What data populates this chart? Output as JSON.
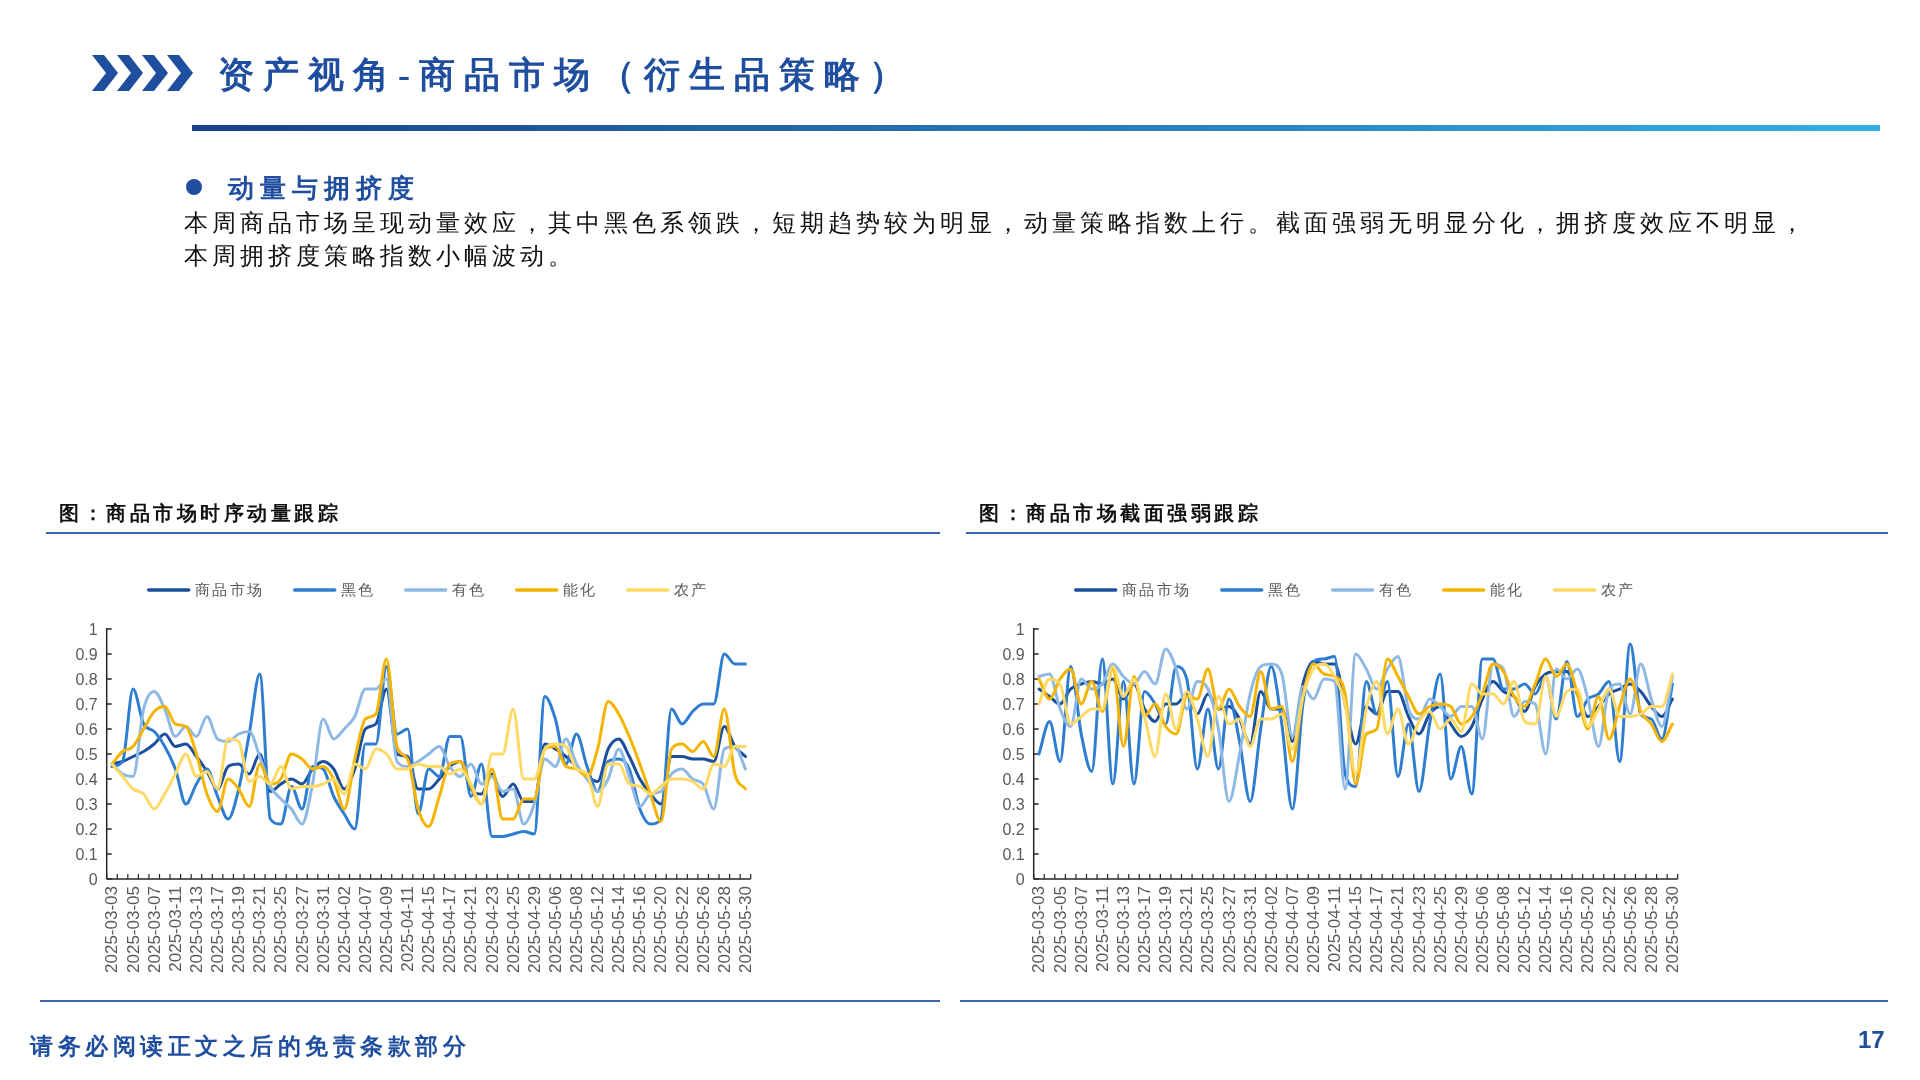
{
  "chart_data": [
    {
      "type": "other",
      "title": "资产视角-商品市场（衍生品策略）",
      "subtitle": "动量与拥挤度",
      "annotations": [
        "本周商品市场呈现动量效应，其中黑色系领跌，短期趋势较为明显，动量策略指数上行。截面强弱无明显分化，拥挤度效应不明显，本周拥挤度策略指数小幅波动。",
        "请务必阅读正文之后的免责条款部分",
        "17"
      ]
    },
    {
      "type": "line",
      "title": "图：商品市场时序动量跟踪",
      "legend": "top",
      "ylim": [
        0,
        1
      ],
      "yticks": [
        0,
        0.1,
        0.2,
        0.3,
        0.4,
        0.5,
        0.6,
        0.7,
        0.8,
        0.9,
        1
      ],
      "categories": [
        "2025-03-03",
        null,
        "2025-03-05",
        null,
        "2025-03-07",
        null,
        "2025-03-11",
        null,
        "2025-03-13",
        null,
        "2025-03-17",
        null,
        "2025-03-19",
        null,
        "2025-03-21",
        null,
        "2025-03-25",
        null,
        "2025-03-27",
        null,
        "2025-03-31",
        null,
        "2025-04-02",
        null,
        "2025-04-07",
        null,
        "2025-04-09",
        null,
        "2025-04-11",
        null,
        "2025-04-15",
        null,
        "2025-04-17",
        null,
        "2025-04-21",
        null,
        "2025-04-23",
        null,
        "2025-04-25",
        null,
        "2025-04-29",
        null,
        "2025-05-06",
        null,
        "2025-05-08",
        null,
        "2025-05-12",
        null,
        "2025-05-14",
        null,
        "2025-05-16",
        null,
        "2025-05-20",
        null,
        "2025-05-22",
        null,
        "2025-05-26",
        null,
        "2025-05-28",
        null,
        "2025-05-30"
      ],
      "series": [
        {
          "name": "商品市场",
          "color": "#1b4f9c",
          "values": [
            0.46,
            0.47,
            0.49,
            0.51,
            0.54,
            0.58,
            0.53,
            0.54,
            0.49,
            0.43,
            0.36,
            0.45,
            0.46,
            0.42,
            0.5,
            0.35,
            0.38,
            0.4,
            0.38,
            0.44,
            0.47,
            0.44,
            0.36,
            0.44,
            0.6,
            0.62,
            0.76,
            0.5,
            0.49,
            0.36,
            0.36,
            0.4,
            0.45,
            0.47,
            0.36,
            0.34,
            0.42,
            0.33,
            0.38,
            0.31,
            0.31,
            0.54,
            0.52,
            0.49,
            0.45,
            0.41,
            0.39,
            0.52,
            0.56,
            0.49,
            0.4,
            0.34,
            0.3,
            0.49,
            0.49,
            0.48,
            0.48,
            0.47,
            0.61,
            0.53,
            0.49
          ]
        },
        {
          "name": "黑色",
          "color": "#2e7dd1",
          "values": [
            0.45,
            0.47,
            0.76,
            0.62,
            0.59,
            0.53,
            0.44,
            0.3,
            0.38,
            0.44,
            0.33,
            0.24,
            0.36,
            0.58,
            0.82,
            0.24,
            0.22,
            0.37,
            0.28,
            0.45,
            0.44,
            0.33,
            0.26,
            0.2,
            0.54,
            0.54,
            0.85,
            0.58,
            0.6,
            0.26,
            0.44,
            0.41,
            0.57,
            0.57,
            0.33,
            0.46,
            0.17,
            0.17,
            0.18,
            0.19,
            0.18,
            0.73,
            0.64,
            0.46,
            0.58,
            0.45,
            0.35,
            0.47,
            0.48,
            0.44,
            0.28,
            0.22,
            0.24,
            0.68,
            0.62,
            0.67,
            0.7,
            0.7,
            0.9,
            0.86,
            0.86
          ]
        },
        {
          "name": "有色",
          "color": "#8eb9e5",
          "values": [
            0.46,
            0.42,
            0.41,
            0.68,
            0.75,
            0.68,
            0.57,
            0.61,
            0.57,
            0.65,
            0.56,
            0.55,
            0.58,
            0.59,
            0.49,
            0.37,
            0.32,
            0.28,
            0.22,
            0.38,
            0.64,
            0.56,
            0.6,
            0.65,
            0.76,
            0.76,
            0.8,
            0.47,
            0.45,
            0.47,
            0.5,
            0.53,
            0.45,
            0.41,
            0.46,
            0.38,
            0.41,
            0.35,
            0.36,
            0.22,
            0.3,
            0.48,
            0.45,
            0.56,
            0.46,
            0.4,
            0.35,
            0.4,
            0.52,
            0.41,
            0.29,
            0.34,
            0.35,
            0.42,
            0.44,
            0.4,
            0.38,
            0.28,
            0.52,
            0.53,
            0.44
          ]
        },
        {
          "name": "能化",
          "color": "#f5b400",
          "values": [
            0.46,
            0.51,
            0.53,
            0.6,
            0.67,
            0.69,
            0.62,
            0.61,
            0.5,
            0.34,
            0.27,
            0.4,
            0.36,
            0.29,
            0.46,
            0.38,
            0.4,
            0.5,
            0.48,
            0.44,
            0.45,
            0.4,
            0.28,
            0.48,
            0.64,
            0.66,
            0.88,
            0.53,
            0.48,
            0.28,
            0.21,
            0.33,
            0.46,
            0.47,
            0.37,
            0.3,
            0.44,
            0.24,
            0.24,
            0.32,
            0.32,
            0.52,
            0.53,
            0.45,
            0.44,
            0.41,
            0.52,
            0.71,
            0.66,
            0.57,
            0.46,
            0.34,
            0.23,
            0.52,
            0.54,
            0.51,
            0.55,
            0.49,
            0.68,
            0.42,
            0.36
          ]
        },
        {
          "name": "农产",
          "color": "#ffd966",
          "values": [
            0.46,
            0.41,
            0.36,
            0.34,
            0.28,
            0.34,
            0.42,
            0.5,
            0.41,
            0.43,
            0.36,
            0.56,
            0.55,
            0.39,
            0.41,
            0.38,
            0.45,
            0.36,
            0.37,
            0.37,
            0.38,
            0.4,
            0.34,
            0.46,
            0.44,
            0.52,
            0.5,
            0.44,
            0.44,
            0.46,
            0.45,
            0.45,
            0.42,
            0.44,
            0.38,
            0.3,
            0.5,
            0.5,
            0.68,
            0.4,
            0.4,
            0.52,
            0.54,
            0.53,
            0.44,
            0.42,
            0.29,
            0.46,
            0.46,
            0.38,
            0.37,
            0.34,
            0.37,
            0.4,
            0.4,
            0.39,
            0.36,
            0.46,
            0.45,
            0.53,
            0.53
          ]
        }
      ]
    },
    {
      "type": "line",
      "title": "图：商品市场截面强弱跟踪",
      "legend": "top",
      "ylim": [
        0,
        1
      ],
      "yticks": [
        0,
        0.1,
        0.2,
        0.3,
        0.4,
        0.5,
        0.6,
        0.7,
        0.8,
        0.9,
        1
      ],
      "categories": [
        "2025-03-03",
        null,
        "2025-03-05",
        null,
        "2025-03-07",
        null,
        "2025-03-11",
        null,
        "2025-03-13",
        null,
        "2025-03-17",
        null,
        "2025-03-19",
        null,
        "2025-03-21",
        null,
        "2025-03-25",
        null,
        "2025-03-27",
        null,
        "2025-03-31",
        null,
        "2025-04-02",
        null,
        "2025-04-07",
        null,
        "2025-04-09",
        null,
        "2025-04-11",
        null,
        "2025-04-15",
        null,
        "2025-04-17",
        null,
        "2025-04-21",
        null,
        "2025-04-23",
        null,
        "2025-04-25",
        null,
        "2025-04-29",
        null,
        "2025-05-06",
        null,
        "2025-05-08",
        null,
        "2025-05-12",
        null,
        "2025-05-14",
        null,
        "2025-05-16",
        null,
        "2025-05-20",
        null,
        "2025-05-22",
        null,
        "2025-05-26",
        null,
        "2025-05-28",
        null,
        "2025-05-30"
      ],
      "series": [
        {
          "name": "商品市场",
          "color": "#1b4f9c",
          "values": [
            0.76,
            0.73,
            0.7,
            0.76,
            0.78,
            0.79,
            0.78,
            0.8,
            0.72,
            0.78,
            0.68,
            0.63,
            0.7,
            0.7,
            0.74,
            0.66,
            0.74,
            0.68,
            0.69,
            0.64,
            0.54,
            0.75,
            0.68,
            0.68,
            0.55,
            0.78,
            0.87,
            0.86,
            0.86,
            0.7,
            0.54,
            0.69,
            0.66,
            0.75,
            0.75,
            0.65,
            0.58,
            0.66,
            0.69,
            0.62,
            0.57,
            0.61,
            0.72,
            0.79,
            0.75,
            0.73,
            0.67,
            0.77,
            0.82,
            0.83,
            0.83,
            0.74,
            0.65,
            0.69,
            0.74,
            0.76,
            0.78,
            0.75,
            0.69,
            0.65,
            0.72
          ]
        },
        {
          "name": "黑色",
          "color": "#2e7dd1",
          "values": [
            0.5,
            0.63,
            0.47,
            0.85,
            0.58,
            0.43,
            0.88,
            0.38,
            0.79,
            0.38,
            0.75,
            0.7,
            0.62,
            0.85,
            0.8,
            0.44,
            0.68,
            0.44,
            0.72,
            0.55,
            0.31,
            0.6,
            0.85,
            0.62,
            0.28,
            0.7,
            0.87,
            0.88,
            0.89,
            0.42,
            0.37,
            0.79,
            0.66,
            0.79,
            0.41,
            0.62,
            0.35,
            0.62,
            0.82,
            0.4,
            0.53,
            0.34,
            0.88,
            0.88,
            0.76,
            0.76,
            0.78,
            0.74,
            0.81,
            0.64,
            0.87,
            0.65,
            0.72,
            0.74,
            0.79,
            0.47,
            0.94,
            0.66,
            0.64,
            0.56,
            0.78
          ]
        },
        {
          "name": "有色",
          "color": "#8eb9e5",
          "values": [
            0.81,
            0.82,
            0.68,
            0.61,
            0.8,
            0.76,
            0.78,
            0.86,
            0.81,
            0.78,
            0.83,
            0.78,
            0.92,
            0.84,
            0.68,
            0.79,
            0.76,
            0.6,
            0.31,
            0.5,
            0.74,
            0.85,
            0.86,
            0.82,
            0.57,
            0.77,
            0.72,
            0.8,
            0.79,
            0.36,
            0.9,
            0.84,
            0.76,
            0.84,
            0.89,
            0.68,
            0.64,
            0.72,
            0.69,
            0.65,
            0.69,
            0.69,
            0.56,
            0.86,
            0.84,
            0.65,
            0.71,
            0.7,
            0.5,
            0.84,
            0.8,
            0.84,
            0.72,
            0.53,
            0.76,
            0.78,
            0.66,
            0.86,
            0.72,
            0.61,
            0.81
          ]
        },
        {
          "name": "能化",
          "color": "#f5b400",
          "values": [
            0.8,
            0.72,
            0.8,
            0.84,
            0.7,
            0.79,
            0.67,
            0.84,
            0.53,
            0.81,
            0.65,
            0.7,
            0.61,
            0.58,
            0.73,
            0.72,
            0.84,
            0.68,
            0.76,
            0.69,
            0.65,
            0.83,
            0.68,
            0.69,
            0.47,
            0.73,
            0.86,
            0.82,
            0.81,
            0.74,
            0.38,
            0.58,
            0.6,
            0.88,
            0.81,
            0.73,
            0.66,
            0.69,
            0.7,
            0.69,
            0.62,
            0.65,
            0.74,
            0.86,
            0.83,
            0.73,
            0.69,
            0.78,
            0.88,
            0.81,
            0.86,
            0.74,
            0.6,
            0.73,
            0.56,
            0.69,
            0.8,
            0.67,
            0.62,
            0.55,
            0.62
          ]
        },
        {
          "name": "农产",
          "color": "#ffd966",
          "values": [
            0.7,
            0.8,
            0.78,
            0.62,
            0.65,
            0.68,
            0.68,
            0.85,
            0.73,
            0.8,
            0.65,
            0.49,
            0.74,
            0.6,
            0.75,
            0.64,
            0.49,
            0.73,
            0.62,
            0.64,
            0.53,
            0.64,
            0.64,
            0.66,
            0.52,
            0.73,
            0.84,
            0.86,
            0.81,
            0.7,
            0.42,
            0.68,
            0.79,
            0.58,
            0.68,
            0.54,
            0.63,
            0.67,
            0.6,
            0.64,
            0.59,
            0.78,
            0.74,
            0.74,
            0.7,
            0.79,
            0.63,
            0.62,
            0.81,
            0.65,
            0.75,
            0.76,
            0.61,
            0.68,
            0.76,
            0.65,
            0.65,
            0.66,
            0.69,
            0.69,
            0.82
          ]
        }
      ]
    }
  ]
}
